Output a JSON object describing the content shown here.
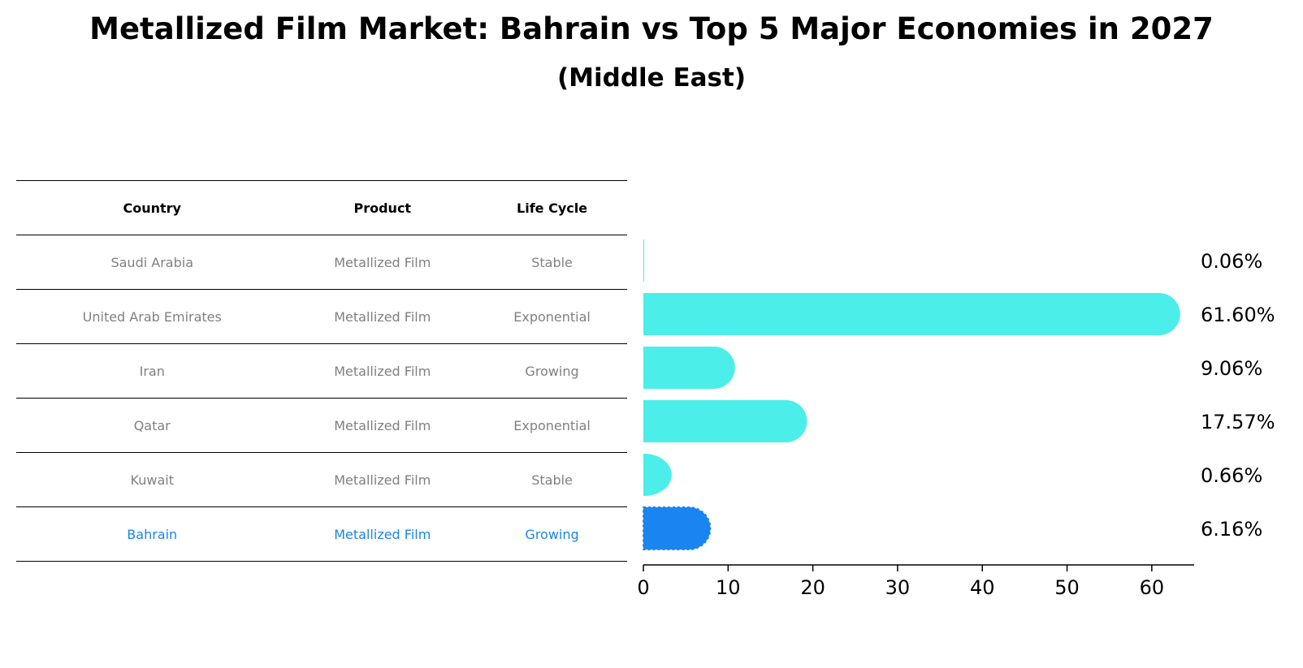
{
  "title": "Metallized Film Market: Bahrain vs Top 5 Major Economies in 2027",
  "subtitle": "(Middle East)",
  "table": {
    "headers": [
      "Country",
      "Product",
      "Life Cycle"
    ],
    "rows": [
      {
        "country": "Saudi Arabia",
        "product": "Metallized Film",
        "life_cycle": "Stable"
      },
      {
        "country": "United Arab Emirates",
        "product": "Metallized Film",
        "life_cycle": "Exponential"
      },
      {
        "country": "Iran",
        "product": "Metallized Film",
        "life_cycle": "Growing"
      },
      {
        "country": "Qatar",
        "product": "Metallized Film",
        "life_cycle": "Exponential"
      },
      {
        "country": "Kuwait",
        "product": "Metallized Film",
        "life_cycle": "Stable"
      },
      {
        "country": "Bahrain",
        "product": "Metallized Film",
        "life_cycle": "Growing"
      }
    ]
  },
  "chart_data": {
    "type": "bar",
    "orientation": "horizontal",
    "categories": [
      "Saudi Arabia",
      "United Arab Emirates",
      "Iran",
      "Qatar",
      "Kuwait",
      "Bahrain"
    ],
    "values": [
      0.06,
      61.6,
      9.06,
      17.57,
      0.66,
      6.16
    ],
    "value_labels": [
      "0.06%",
      "61.60%",
      "9.06%",
      "17.57%",
      "0.66%",
      "6.16%"
    ],
    "highlight": "Bahrain",
    "xlim": [
      0,
      65
    ],
    "xticks": [
      0,
      10,
      20,
      30,
      40,
      50,
      60
    ],
    "xlabel": "",
    "ylabel": "",
    "colors": {
      "default": "#4beee8",
      "highlight": "#1a85f0"
    }
  },
  "colors": {
    "text_muted": "#808080",
    "highlight_text": "#1a85e8"
  }
}
